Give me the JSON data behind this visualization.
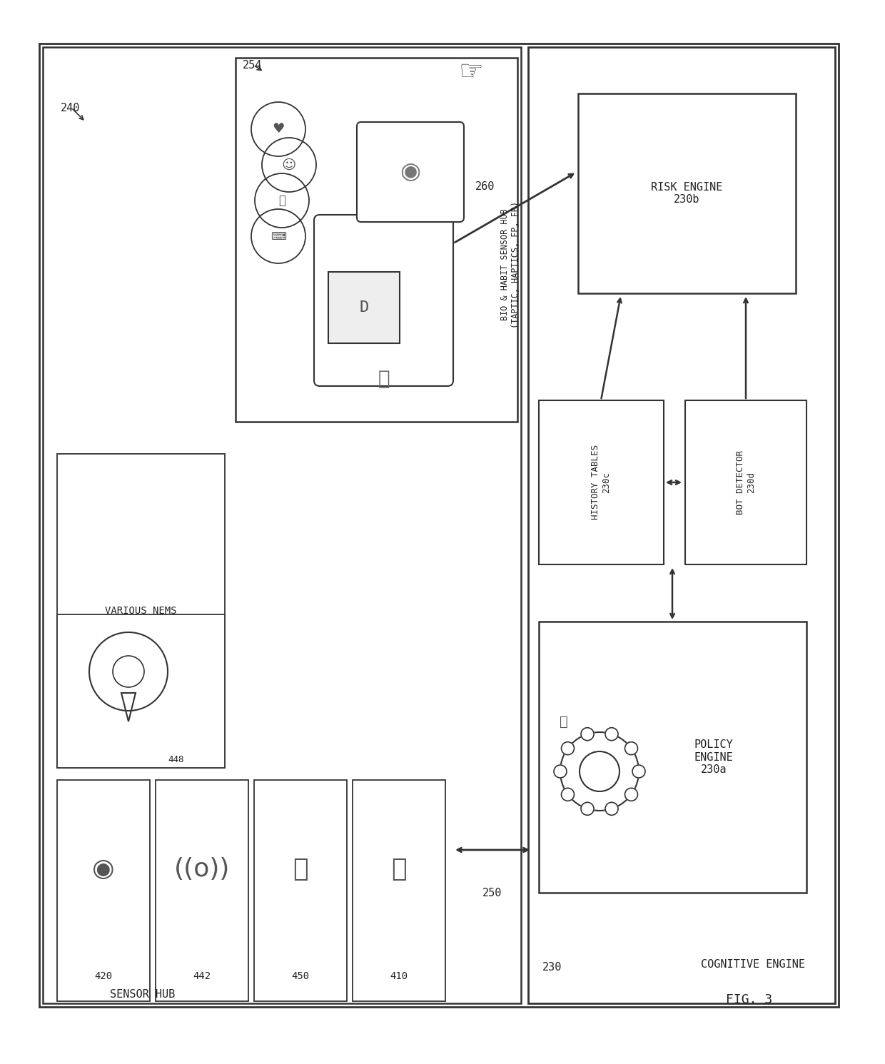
{
  "fig_label": "FIG. 3",
  "bg_color": "#ffffff",
  "line_color": "#333333",
  "box_color": "#ffffff",
  "box_edge": "#333333",
  "label_240": "240",
  "label_250": "250",
  "label_254": "254",
  "label_260": "260",
  "label_230": "230",
  "label_410": "410",
  "label_420": "420",
  "label_442": "442",
  "label_448": "448",
  "label_450": "450",
  "sensor_hub_text": "SENSOR HUB",
  "various_nems_text": "VARIOUS NEMS",
  "bio_habit_text": "BIO & HABIT SENSOR HUB\n(TAPTIC, HAPTICS, FP, FR)",
  "cognitive_engine_text": "COGNITIVE ENGINE",
  "risk_engine_text": "RISK ENGINE\n230b",
  "history_tables_text": "HISTORY TABLES\n230c",
  "bot_detector_text": "BOT DETECTOR\n230d",
  "policy_engine_text": "POLICY\nENGINE\n230a"
}
